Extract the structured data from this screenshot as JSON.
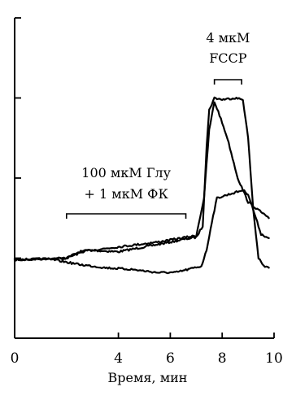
{
  "chart_data": {
    "type": "line",
    "xlabel": "Время, мин",
    "ylabel": "",
    "title": "",
    "xlim": [
      0,
      10
    ],
    "ylim": [
      0,
      4
    ],
    "x_ticks": [
      0,
      4,
      6,
      8,
      10
    ],
    "x_tick_labels": [
      "0",
      "4",
      "6",
      "8",
      "10"
    ],
    "y_ticks": [
      1,
      2,
      3,
      4
    ],
    "grid": false,
    "annotations": [
      {
        "id": "glu",
        "lines": [
          "100 мкМ Глу",
          "+ 1 мкМ ФК"
        ],
        "x_start": 2.0,
        "x_end": 6.6
      },
      {
        "id": "fccp",
        "lines": [
          "4 мкМ",
          "FCCP"
        ],
        "x_start": 7.7,
        "x_end": 8.75
      }
    ],
    "series": [
      {
        "x": [
          0,
          1,
          2,
          2.8,
          4,
          5,
          6,
          6.6,
          7.0,
          7.25,
          7.4,
          7.5,
          7.7,
          8.0,
          8.5,
          8.8,
          9.0,
          9.2,
          9.4,
          9.6,
          9.8
        ],
        "y": [
          0.98,
          0.99,
          1.0,
          1.1,
          1.08,
          1.14,
          1.2,
          1.24,
          1.26,
          1.4,
          2.4,
          2.85,
          3.0,
          2.98,
          3.0,
          2.98,
          2.5,
          1.6,
          1.0,
          0.9,
          0.88
        ]
      },
      {
        "x": [
          0,
          1,
          2,
          2.5,
          3.5,
          4.5,
          5.5,
          6.6,
          7.0,
          7.3,
          7.5,
          7.7,
          7.85,
          8.2,
          8.6,
          9.0,
          9.4,
          9.8
        ],
        "y": [
          0.98,
          0.99,
          1.0,
          1.08,
          1.12,
          1.16,
          1.2,
          1.26,
          1.28,
          1.75,
          2.6,
          2.95,
          2.83,
          2.5,
          2.0,
          1.7,
          1.6,
          1.5
        ]
      },
      {
        "x": [
          0,
          1,
          1.5,
          2.5,
          3.5,
          4.5,
          5.5,
          6.2,
          6.7,
          7.2,
          7.4,
          7.6,
          7.8,
          8.3,
          8.8,
          9.0,
          9.3,
          9.5,
          9.8
        ],
        "y": [
          0.98,
          0.99,
          0.98,
          0.92,
          0.88,
          0.86,
          0.82,
          0.82,
          0.86,
          0.9,
          1.1,
          1.45,
          1.75,
          1.8,
          1.85,
          1.8,
          1.5,
          1.3,
          1.25
        ]
      }
    ]
  }
}
